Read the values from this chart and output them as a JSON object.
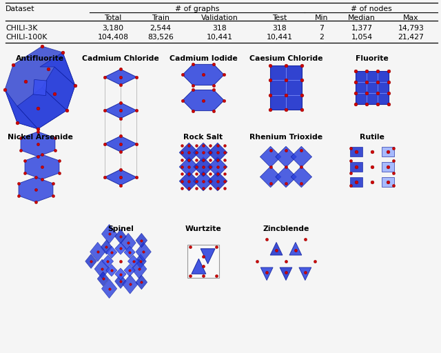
{
  "table_data": [
    [
      "CHILI-3K",
      "3,180",
      "2,544",
      "318",
      "318",
      "7",
      "1,377",
      "14,793"
    ],
    [
      "CHILI-100K",
      "104,408",
      "83,526",
      "10,441",
      "10,441",
      "2",
      "1,054",
      "21,427"
    ]
  ],
  "bg_color": "#f5f5f5",
  "crystal_names": [
    [
      "Antifluorite",
      0,
      0
    ],
    [
      "Cadmium Chloride",
      0,
      1
    ],
    [
      "Cadmium Iodide",
      0,
      2
    ],
    [
      "Caesium Chloride",
      0,
      3
    ],
    [
      "Fluorite",
      0,
      4
    ],
    [
      "Nickel Arsenide",
      1,
      0
    ],
    [
      "Rock Salt",
      1,
      2
    ],
    [
      "Rhenium Trioxide",
      1,
      3
    ],
    [
      "Rutile",
      1,
      4
    ],
    [
      "Spinel",
      2,
      1
    ],
    [
      "Wurtzite",
      2,
      2
    ],
    [
      "Zincblende",
      2,
      3
    ]
  ]
}
